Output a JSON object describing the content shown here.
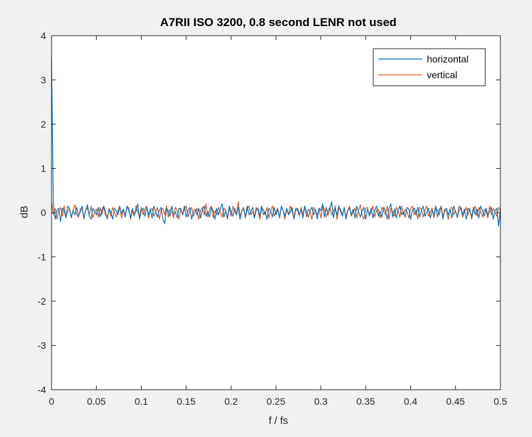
{
  "window": {
    "background": "#f0f0f0"
  },
  "chart_data": {
    "type": "line",
    "title": "A7RII ISO 3200, 0.8 second LENR not used",
    "xlabel": "f / fs",
    "ylabel": "dB",
    "xlim": [
      0,
      0.5
    ],
    "ylim": [
      -4,
      4
    ],
    "xticks": [
      0,
      0.05,
      0.1,
      0.15,
      0.2,
      0.25,
      0.3,
      0.35,
      0.4,
      0.45,
      0.5
    ],
    "xtick_labels": [
      "0",
      "0.05",
      "0.1",
      "0.15",
      "0.2",
      "0.25",
      "0.3",
      "0.35",
      "0.4",
      "0.45",
      "0.5"
    ],
    "yticks": [
      -4,
      -3,
      -2,
      -1,
      0,
      1,
      2,
      3,
      4
    ],
    "ytick_labels": [
      "-4",
      "-3",
      "-2",
      "-1",
      "0",
      "1",
      "2",
      "3",
      "4"
    ],
    "grid": false,
    "legend": {
      "location": "top-right",
      "entries": [
        "horizontal",
        "vertical"
      ]
    },
    "x_step": 0.002,
    "series": [
      {
        "name": "horizontal",
        "color": "#0072bd",
        "values": [
          3.5,
          0.2,
          -0.15,
          0.05,
          0.1,
          -0.2,
          0.1,
          0.05,
          -0.12,
          0.15,
          0.08,
          -0.1,
          0.05,
          -0.05,
          0.12,
          -0.08,
          0.02,
          0.15,
          -0.12,
          0.05,
          0.18,
          -0.08,
          -0.15,
          0.1,
          0.03,
          -0.05,
          0.12,
          -0.1,
          0.05,
          0.15,
          -0.05,
          -0.12,
          0.08,
          0.02,
          -0.15,
          0.1,
          0.05,
          -0.05,
          0.12,
          -0.02,
          0.08,
          -0.1,
          0.15,
          0.05,
          -0.12,
          0.1,
          -0.05,
          0.02,
          0.2,
          -0.15,
          0.05,
          0.1,
          -0.08,
          0.12,
          -0.05,
          0.08,
          -0.12,
          0.15,
          0.02,
          -0.1,
          0.05,
          0.12,
          -0.15,
          -0.25,
          0.1,
          0.05,
          -0.08,
          0.15,
          -0.05,
          0.02,
          -0.12,
          0.1,
          0.08,
          -0.05,
          0.15,
          -0.1,
          0.05,
          0.12,
          -0.15,
          0.02,
          0.08,
          -0.05,
          0.1,
          -0.12,
          0.05,
          0.15,
          -0.08,
          0.02,
          -0.1,
          0.12,
          0.05,
          -0.15,
          0.1,
          -0.05,
          0.08,
          0.2,
          -0.1,
          0.05,
          -0.12,
          0.15,
          0.02,
          -0.08,
          0.1,
          -0.05,
          0.12,
          -0.15,
          0.05,
          0.08,
          -0.1,
          0.15,
          -0.05,
          0.02,
          0.12,
          -0.12,
          0.05,
          0.1,
          -0.08,
          0.15,
          -0.05,
          0.02,
          -0.15,
          0.1,
          0.05,
          -0.1,
          0.12,
          -0.05,
          0.08,
          -0.12,
          0.15,
          0.05,
          -0.08,
          0.1,
          -0.05,
          0.02,
          0.12,
          -0.15,
          0.05,
          0.1,
          -0.05,
          0.08,
          -0.12,
          0.15,
          0.02,
          -0.1,
          0.05,
          0.12,
          -0.05,
          0.08,
          -0.15,
          0.1,
          0.05,
          0.2,
          -0.1,
          0.12,
          -0.05,
          0.08,
          0.25,
          -0.12,
          0.1,
          -0.05,
          0.15,
          0.02,
          -0.08,
          0.12,
          -0.15,
          0.05,
          0.1,
          -0.05,
          0.08,
          -0.12,
          0.15,
          0.02,
          -0.1,
          0.05,
          0.12,
          -0.15,
          0.08,
          -0.05,
          0.1,
          -0.12,
          0.05,
          0.15,
          -0.08,
          0.02,
          -0.1,
          0.12,
          0.05,
          -0.15,
          0.1,
          0.2,
          -0.1,
          0.08,
          -0.12,
          0.05,
          0.15,
          -0.05,
          0.02,
          -0.1,
          0.12,
          0.08,
          -0.15,
          0.05,
          0.1,
          -0.05,
          0.12,
          -0.1,
          0.05,
          0.15,
          -0.08,
          0.02,
          0.1,
          -0.12,
          0.05,
          -0.05,
          0.15,
          -0.1,
          0.08,
          0.12,
          -0.15,
          0.05,
          0.1,
          -0.05,
          0.08,
          -0.12,
          0.15,
          0.02,
          -0.1,
          0.05,
          0.12,
          -0.05,
          0.08,
          -0.15,
          0.1,
          0.05,
          -0.1,
          0.12,
          -0.05,
          0.08,
          -0.12,
          0.15,
          0.05,
          -0.08,
          0.1,
          -0.05,
          0.02,
          0.12,
          -0.15,
          0.05,
          0.1,
          -0.3,
          0.08,
          -0.12,
          0.05,
          -0.2
        ]
      },
      {
        "name": "vertical",
        "color": "#d95319",
        "values": [
          0.25,
          -0.05,
          0.1,
          -0.15,
          0.05,
          0.12,
          -0.08,
          0.15,
          -0.1,
          0.02,
          0.1,
          -0.12,
          0.05,
          0.18,
          -0.05,
          -0.1,
          0.08,
          0.12,
          -0.15,
          0.05,
          0.1,
          -0.05,
          0.15,
          -0.12,
          0.02,
          0.08,
          -0.1,
          0.12,
          -0.05,
          0.15,
          0.05,
          -0.15,
          0.1,
          -0.08,
          0.12,
          0.02,
          -0.1,
          0.05,
          0.15,
          -0.12,
          0.08,
          -0.05,
          0.1,
          0.12,
          -0.15,
          0.05,
          -0.08,
          0.15,
          0.02,
          -0.1,
          0.12,
          -0.05,
          0.08,
          0.15,
          -0.12,
          0.05,
          0.1,
          -0.08,
          0.02,
          0.12,
          -0.15,
          0.05,
          0.1,
          -0.05,
          0.15,
          -0.1,
          0.08,
          0.02,
          -0.12,
          0.12,
          0.05,
          -0.15,
          0.1,
          -0.05,
          0.08,
          0.15,
          -0.1,
          0.05,
          0.12,
          -0.08,
          0.02,
          0.1,
          -0.15,
          0.05,
          0.12,
          -0.05,
          0.2,
          -0.1,
          0.08,
          0.15,
          -0.12,
          0.05,
          -0.05,
          0.12,
          0.02,
          -0.1,
          0.1,
          0.05,
          -0.15,
          0.12,
          -0.08,
          0.15,
          0.02,
          -0.05,
          0.25,
          -0.1,
          0.05,
          0.12,
          -0.12,
          0.08,
          0.15,
          -0.05,
          0.02,
          -0.1,
          0.12,
          0.05,
          -0.15,
          0.1,
          0.08,
          -0.05,
          0.12,
          -0.12,
          0.05,
          0.15,
          -0.08,
          0.02,
          0.1,
          -0.1,
          0.12,
          0.05,
          -0.15,
          0.08,
          -0.05,
          0.15,
          0.02,
          -0.12,
          0.1,
          0.05,
          -0.08,
          0.12,
          -0.05,
          0.15,
          -0.1,
          0.08,
          0.02,
          -0.15,
          0.12,
          0.05,
          -0.05,
          0.1,
          -0.12,
          0.15,
          0.08,
          -0.1,
          0.05,
          0.12,
          -0.05,
          0.02,
          0.15,
          -0.15,
          0.1,
          0.08,
          -0.05,
          0.12,
          -0.1,
          0.05,
          0.15,
          -0.08,
          0.02,
          0.1,
          -0.12,
          0.05,
          0.18,
          -0.05,
          -0.15,
          0.1,
          0.12,
          -0.08,
          0.02,
          0.15,
          -0.1,
          0.05,
          0.08,
          -0.12,
          0.12,
          0.05,
          -0.05,
          0.15,
          -0.15,
          0.1,
          0.02,
          -0.08,
          0.12,
          0.05,
          -0.1,
          0.15,
          -0.05,
          0.08,
          0.02,
          -0.12,
          0.1,
          0.15,
          -0.05,
          0.05,
          -0.15,
          0.12,
          0.08,
          -0.1,
          0.05,
          0.15,
          -0.08,
          0.02,
          0.1,
          -0.12,
          0.12,
          0.05,
          -0.05,
          0.15,
          -0.1,
          0.08,
          0.02,
          -0.15,
          0.1,
          0.12,
          -0.05,
          0.05,
          -0.12,
          0.15,
          0.08,
          -0.1,
          0.02,
          0.12,
          -0.05,
          0.1,
          -0.15,
          0.05,
          0.15,
          -0.08,
          0.12,
          0.02,
          -0.1,
          0.08,
          0.05,
          -0.12,
          0.15,
          -0.05,
          0.1,
          0.02,
          -0.08,
          0.12,
          0.05,
          -0.15,
          0.1,
          0.08,
          -0.05,
          0.12,
          0.02
        ]
      }
    ]
  }
}
